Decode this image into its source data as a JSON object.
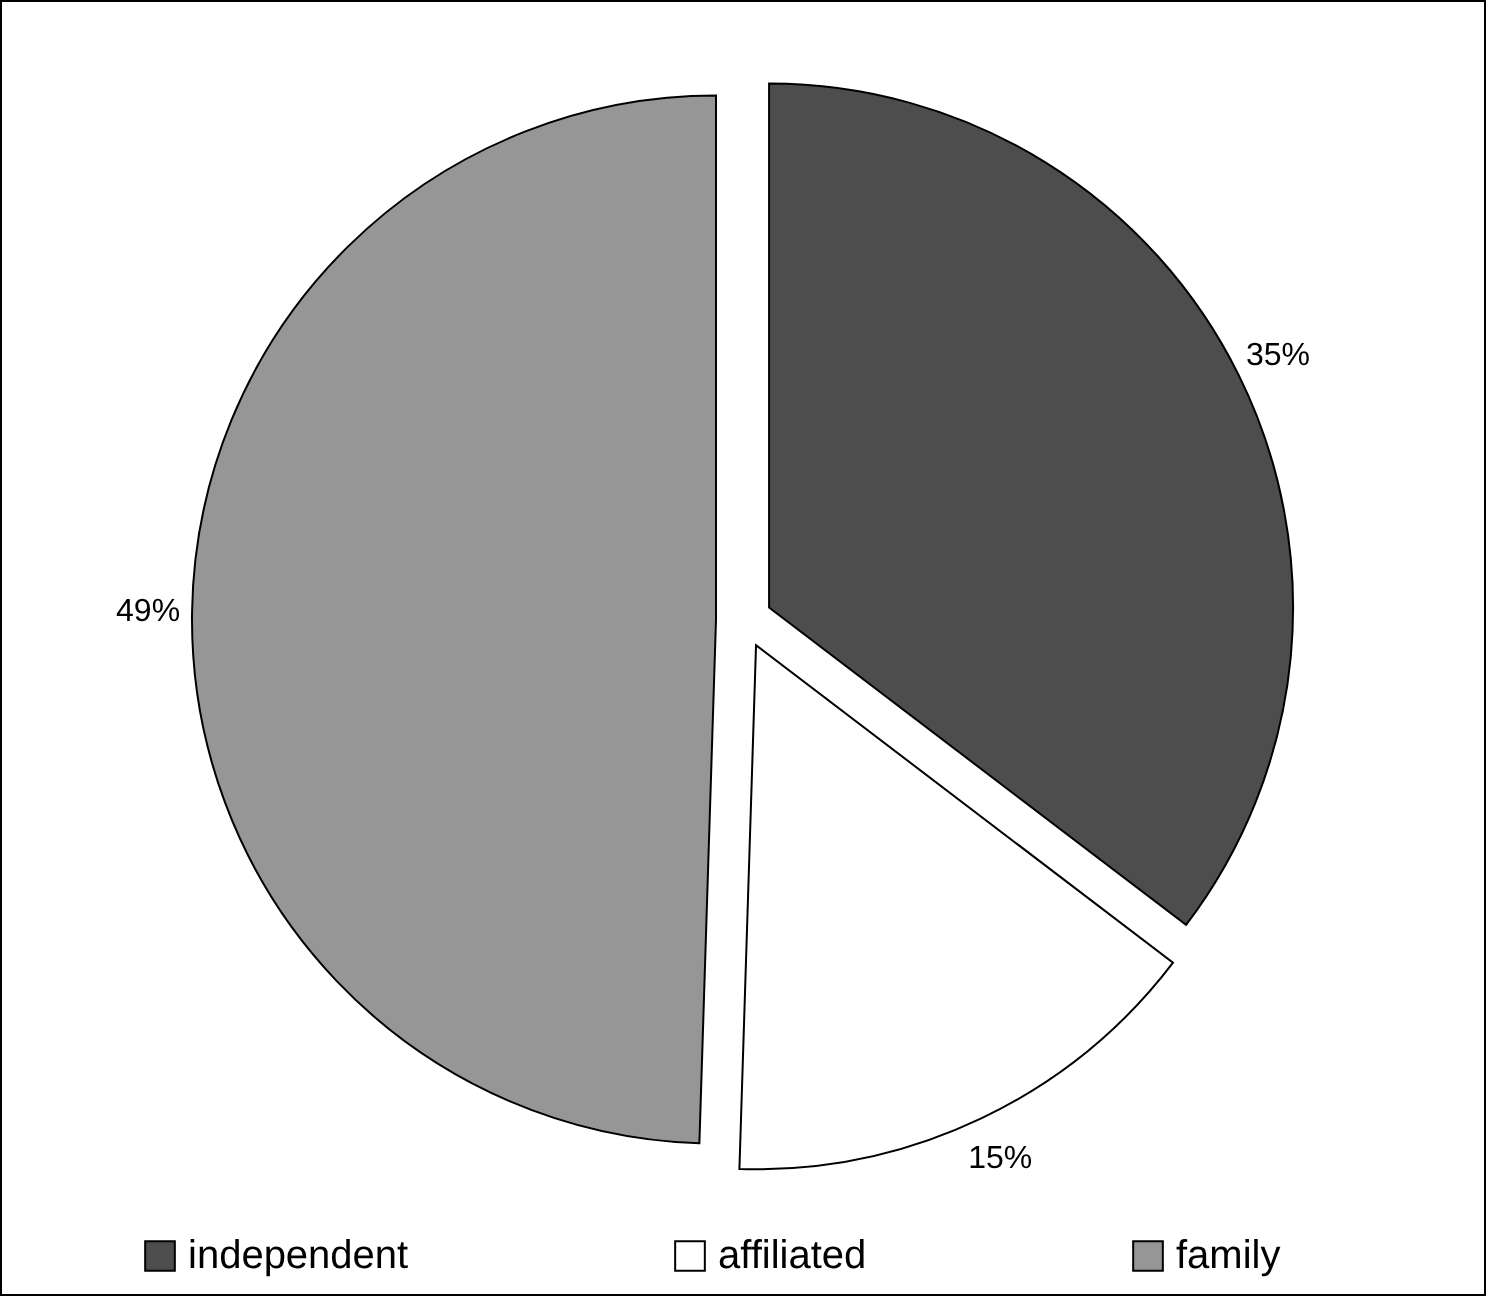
{
  "chart_data": {
    "type": "pie",
    "categories": [
      "independent",
      "affiliated",
      "family"
    ],
    "values": [
      35,
      15,
      49
    ],
    "colors": [
      "#4d4d4d",
      "#ffffff",
      "#969696"
    ],
    "value_labels": [
      "35%",
      "15%",
      "49%"
    ],
    "legend": "bottom"
  }
}
